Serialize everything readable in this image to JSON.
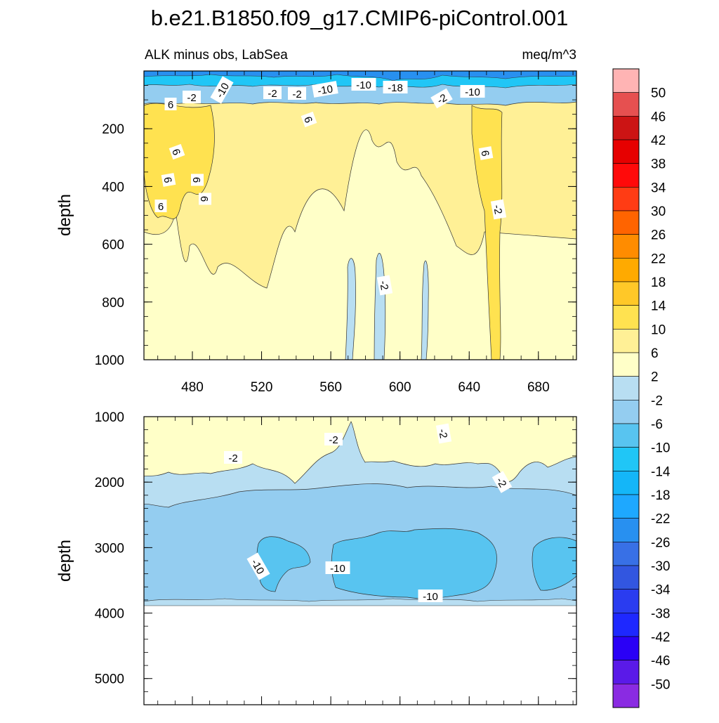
{
  "chart_data": {
    "type": "heatmap",
    "title": "b.e21.B1850.f09_g17.CMIP6-piControl.001",
    "subtitle_left": "ALK minus obs, LabSea",
    "subtitle_right": "meq/m^3",
    "colorbar": {
      "levels": [
        -50,
        -46,
        -42,
        -38,
        -34,
        -30,
        -26,
        -22,
        -18,
        -14,
        -10,
        -6,
        -2,
        2,
        6,
        10,
        14,
        18,
        22,
        26,
        30,
        34,
        38,
        42,
        46,
        50
      ],
      "colors": [
        "#8a2be2",
        "#5a1ae8",
        "#2a00f6",
        "#1e28ff",
        "#2a3cf0",
        "#3256e0",
        "#3870e6",
        "#2890f0",
        "#1ea8ff",
        "#14b6f8",
        "#20c6f6",
        "#58c4f0",
        "#94cdf0",
        "#b8def2",
        "#ffffc8",
        "#fff096",
        "#ffe250",
        "#ffc828",
        "#ffaa00",
        "#ff8c00",
        "#ff6400",
        "#ff3c14",
        "#ff0a0a",
        "#e60000",
        "#cc1414",
        "#e65050",
        "#ffb4b4"
      ],
      "labels": [
        "50",
        "46",
        "42",
        "38",
        "34",
        "30",
        "26",
        "22",
        "18",
        "14",
        "10",
        "6",
        "2",
        "-2",
        "-6",
        "-10",
        "-14",
        "-18",
        "-22",
        "-26",
        "-30",
        "-34",
        "-38",
        "-42",
        "-46",
        "-50"
      ]
    },
    "panels": [
      {
        "ylabel": "depth",
        "ylim": [
          0,
          1000
        ],
        "yticks": [
          "200",
          "400",
          "600",
          "800",
          "1000"
        ],
        "xlim": [
          452,
          702
        ],
        "xticks": [
          "480",
          "520",
          "560",
          "600",
          "640",
          "680"
        ],
        "contour_labels": [
          "6",
          "-2",
          "-10",
          "-2",
          "-2",
          "-10",
          "-10",
          "-18",
          "-2",
          "-10",
          "6",
          "6",
          "6",
          "6",
          "6",
          "6",
          "6",
          "-2",
          "-2"
        ]
      },
      {
        "ylabel": "depth",
        "ylim": [
          1000,
          5400
        ],
        "yticks": [
          "1000",
          "2000",
          "3000",
          "4000",
          "5000"
        ],
        "xlim": [
          452,
          702
        ],
        "contour_labels": [
          "-2",
          "-2",
          "-2",
          "-2",
          "-10",
          "-10",
          "-10"
        ]
      }
    ]
  }
}
